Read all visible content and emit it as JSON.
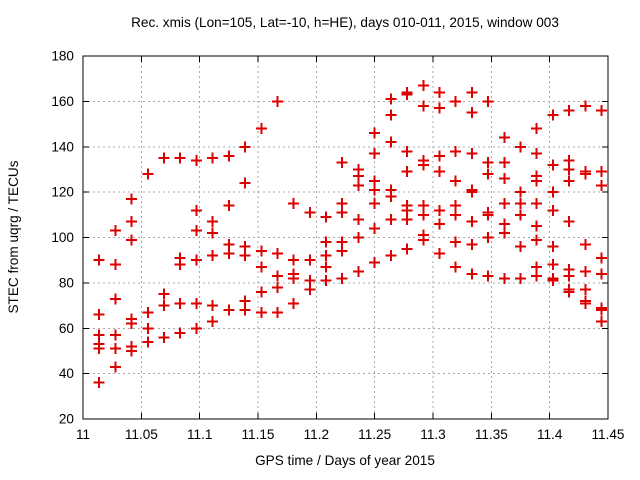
{
  "figure": {
    "title": "Rec. xmis (Lon=105, Lat=-10, h=HE), days 010-011, 2015, window 003",
    "xlabel": "GPS time / Days of year 2015",
    "ylabel": "STEC from uqrg / TECUs"
  },
  "chart_data": {
    "type": "scatter",
    "title": "Rec. xmis (Lon=105, Lat=-10, h=HE), days 010-011, 2015, window 003",
    "xlabel": "GPS time / Days of year 2015",
    "ylabel": "STEC from uqrg / TECUs",
    "xlim": [
      11.0,
      11.45
    ],
    "ylim": [
      20,
      180
    ],
    "xticks": {
      "values": [
        11.0,
        11.05,
        11.1,
        11.15,
        11.2,
        11.25,
        11.3,
        11.35,
        11.4,
        11.45
      ],
      "labels": [
        "11",
        "11.05",
        "11.1",
        "11.15",
        "11.2",
        "11.25",
        "11.3",
        "11.35",
        "11.4",
        "11.45"
      ]
    },
    "yticks": {
      "values": [
        20,
        40,
        60,
        80,
        100,
        120,
        140,
        160,
        180
      ],
      "labels": [
        "20",
        "40",
        "60",
        "80",
        "100",
        "120",
        "140",
        "160",
        "180"
      ]
    },
    "grid": true,
    "grid_style": "dashed",
    "grid_color": "#a8a8a8",
    "border_color": "#000000",
    "background_color": "#ffffff",
    "legend": false,
    "marker": "plus",
    "marker_color": "#dd0000",
    "series": [
      {
        "name": "STEC",
        "epochs": [
          {
            "t": 11.0139,
            "stec": [
              90,
              66,
              57,
              53,
              51,
              36
            ]
          },
          {
            "t": 11.0278,
            "stec": [
              103,
              88,
              73,
              57,
              51,
              43
            ]
          },
          {
            "t": 11.0417,
            "stec": [
              117,
              107,
              99,
              64,
              62,
              52,
              50
            ]
          },
          {
            "t": 11.0556,
            "stec": [
              128,
              67,
              67,
              60,
              54
            ]
          },
          {
            "t": 11.0694,
            "stec": [
              135,
              75,
              70,
              56
            ]
          },
          {
            "t": 11.0833,
            "stec": [
              135,
              91,
              88,
              71,
              58
            ]
          },
          {
            "t": 11.0972,
            "stec": [
              134,
              112,
              103,
              90,
              71,
              60
            ]
          },
          {
            "t": 11.1111,
            "stec": [
              135,
              107,
              102,
              92,
              70,
              63
            ]
          },
          {
            "t": 11.125,
            "stec": [
              136,
              114,
              97,
              93,
              68
            ]
          },
          {
            "t": 11.1389,
            "stec": [
              140,
              124,
              96,
              92,
              72,
              68
            ]
          },
          {
            "t": 11.1528,
            "stec": [
              148,
              94,
              87,
              76,
              67
            ]
          },
          {
            "t": 11.1667,
            "stec": [
              160,
              93,
              83,
              78,
              67
            ]
          },
          {
            "t": 11.1806,
            "stec": [
              115,
              90,
              84,
              82,
              71
            ]
          },
          {
            "t": 11.1944,
            "stec": [
              111,
              90,
              90,
              81,
              77
            ]
          },
          {
            "t": 11.2083,
            "stec": [
              109,
              98,
              92,
              87,
              81
            ]
          },
          {
            "t": 11.2222,
            "stec": [
              133,
              115,
              111,
              98,
              94,
              82
            ]
          },
          {
            "t": 11.2361,
            "stec": [
              130,
              127,
              123,
              108,
              100,
              85
            ]
          },
          {
            "t": 11.25,
            "stec": [
              146,
              137,
              125,
              121,
              115,
              104,
              89
            ]
          },
          {
            "t": 11.2639,
            "stec": [
              161,
              154,
              142,
              121,
              118,
              108,
              92
            ]
          },
          {
            "t": 11.2778,
            "stec": [
              164,
              163,
              138,
              129,
              114,
              112,
              108,
              95
            ]
          },
          {
            "t": 11.2917,
            "stec": [
              167,
              158,
              134,
              132,
              114,
              110,
              101,
              99
            ]
          },
          {
            "t": 11.3056,
            "stec": [
              164,
              157,
              136,
              129,
              112,
              106,
              93
            ]
          },
          {
            "t": 11.3194,
            "stec": [
              160,
              138,
              125,
              114,
              110,
              98,
              87
            ]
          },
          {
            "t": 11.3333,
            "stec": [
              164,
              155,
              137,
              121,
              120,
              107,
              97,
              84
            ]
          },
          {
            "t": 11.3472,
            "stec": [
              160,
              133,
              128,
              111,
              110,
              100,
              83
            ]
          },
          {
            "t": 11.3611,
            "stec": [
              144,
              133,
              126,
              115,
              106,
              102,
              82
            ]
          },
          {
            "t": 11.375,
            "stec": [
              140,
              120,
              115,
              110,
              96,
              82
            ]
          },
          {
            "t": 11.3889,
            "stec": [
              148,
              137,
              127,
              125,
              115,
              105,
              99,
              87,
              83
            ]
          },
          {
            "t": 11.4028,
            "stec": [
              154,
              132,
              120,
              112,
              96,
              88,
              82,
              81
            ]
          },
          {
            "t": 11.4167,
            "stec": [
              156,
              134,
              130,
              125,
              107,
              86,
              83,
              77,
              76
            ]
          },
          {
            "t": 11.4306,
            "stec": [
              158,
              129,
              128,
              97,
              85,
              77,
              72,
              71
            ]
          },
          {
            "t": 11.4444,
            "stec": [
              156,
              129,
              123,
              91,
              84,
              69,
              68,
              63
            ]
          }
        ]
      }
    ]
  }
}
